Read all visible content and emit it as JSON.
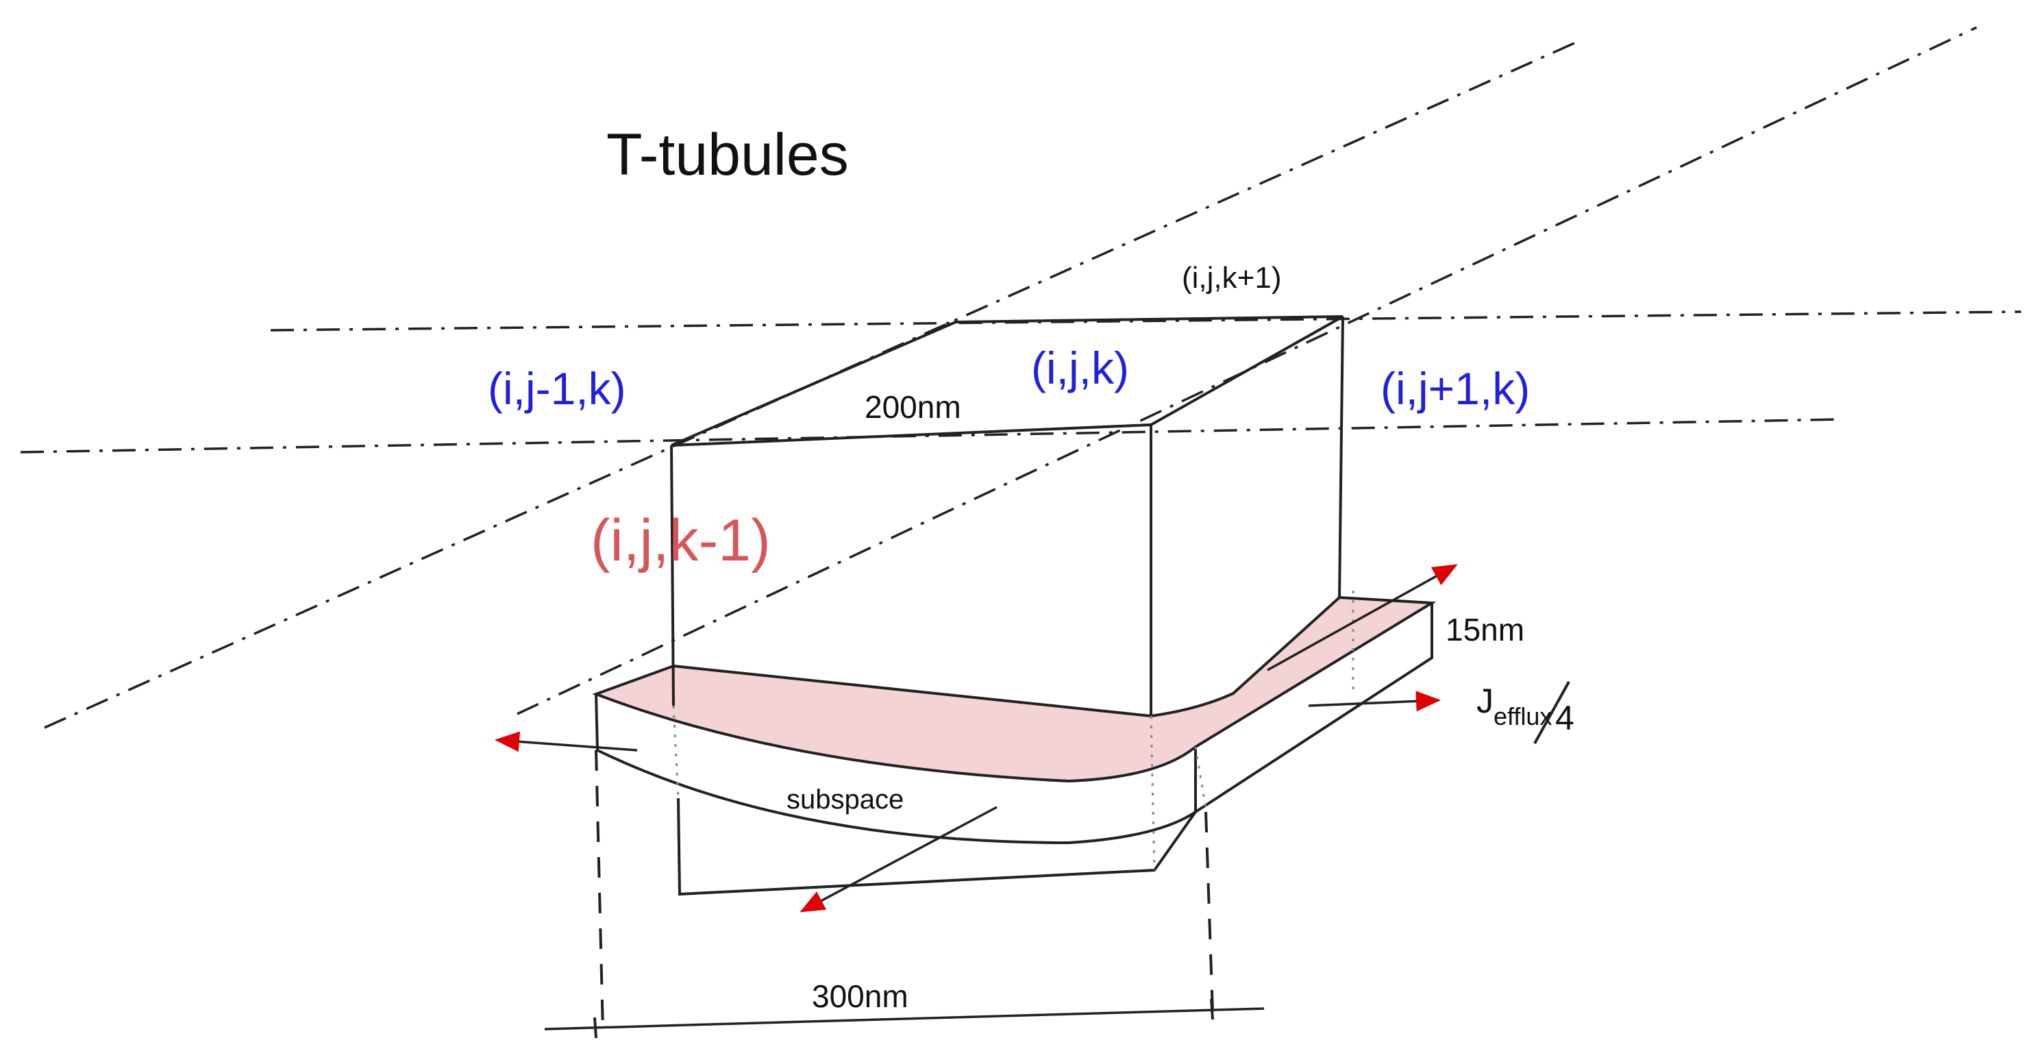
{
  "title": "T-tubules",
  "labels": {
    "upper": "(i,j,k+1)",
    "left": "(i,j-1,k)",
    "center": "(i,j,k)",
    "right": "(i,j+1,k)",
    "lower": "(i,j,k-1)",
    "width_top": "200nm",
    "thickness": "15nm",
    "flux_main": "J",
    "flux_sub": "efflux",
    "flux_div": "/4",
    "subspace": "subspace",
    "width_bottom": "300nm"
  },
  "colors": {
    "neighbor_labels": "#1f1fe0",
    "lower_label": "#d8555a",
    "subspace_fill": "#f3d3d3",
    "arrow_head": "#e00000"
  }
}
